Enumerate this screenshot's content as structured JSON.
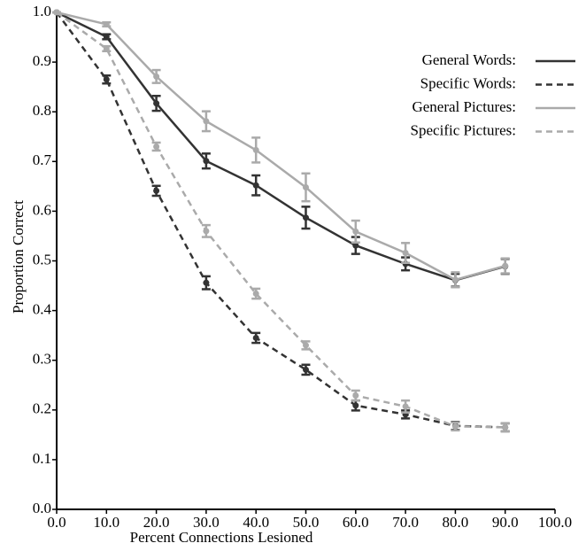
{
  "chart_data": {
    "type": "line",
    "xlabel": "Percent Connections Lesioned",
    "ylabel": "Proportion Correct",
    "x": [
      0,
      10,
      20,
      30,
      40,
      50,
      60,
      70,
      80,
      90
    ],
    "series": [
      {
        "name": "General Words:",
        "color": "#333333",
        "dashed": false,
        "values": [
          1.0,
          0.951,
          0.817,
          0.701,
          0.652,
          0.587,
          0.531,
          0.494,
          0.461,
          0.489
        ],
        "errors": [
          0,
          0.005,
          0.015,
          0.015,
          0.02,
          0.022,
          0.017,
          0.013,
          0.013,
          0.015
        ]
      },
      {
        "name": "Specific Words:",
        "color": "#333333",
        "dashed": true,
        "values": [
          1.0,
          0.865,
          0.641,
          0.456,
          0.345,
          0.281,
          0.209,
          0.191,
          0.168,
          0.165
        ],
        "errors": [
          0,
          0.008,
          0.01,
          0.013,
          0.01,
          0.01,
          0.01,
          0.008,
          0.008,
          0.008
        ]
      },
      {
        "name": "General Pictures:",
        "color": "#aaaaaa",
        "dashed": false,
        "values": [
          1.0,
          0.976,
          0.871,
          0.781,
          0.723,
          0.648,
          0.559,
          0.516,
          0.462,
          0.49
        ],
        "errors": [
          0,
          0.004,
          0.013,
          0.02,
          0.025,
          0.028,
          0.022,
          0.02,
          0.015,
          0.015
        ]
      },
      {
        "name": "Specific Pictures:",
        "color": "#aaaaaa",
        "dashed": true,
        "values": [
          1.0,
          0.927,
          0.73,
          0.56,
          0.434,
          0.33,
          0.229,
          0.207,
          0.167,
          0.165
        ],
        "errors": [
          0,
          0.005,
          0.008,
          0.012,
          0.01,
          0.008,
          0.01,
          0.012,
          0.008,
          0.008
        ]
      }
    ],
    "xlim": [
      0,
      100
    ],
    "xticks": [
      {
        "value": 0,
        "label": "0.0"
      },
      {
        "value": 10,
        "label": "10.0"
      },
      {
        "value": 20,
        "label": "20.0"
      },
      {
        "value": 30,
        "label": "30.0"
      },
      {
        "value": 40,
        "label": "40.0"
      },
      {
        "value": 50,
        "label": "50.0"
      },
      {
        "value": 60,
        "label": "60.0"
      },
      {
        "value": 70,
        "label": "70.0"
      },
      {
        "value": 80,
        "label": "80.0"
      },
      {
        "value": 90,
        "label": "90.0"
      },
      {
        "value": 100,
        "label": "100.0"
      }
    ],
    "ylim": [
      0,
      1
    ],
    "yticks": [
      {
        "value": 0,
        "label": "0.0"
      },
      0.1,
      0.2,
      0.3,
      0.4,
      0.5,
      0.6,
      0.7,
      0.8,
      0.9,
      {
        "value": 1,
        "label": "1.0"
      }
    ],
    "legend": "upper right"
  }
}
